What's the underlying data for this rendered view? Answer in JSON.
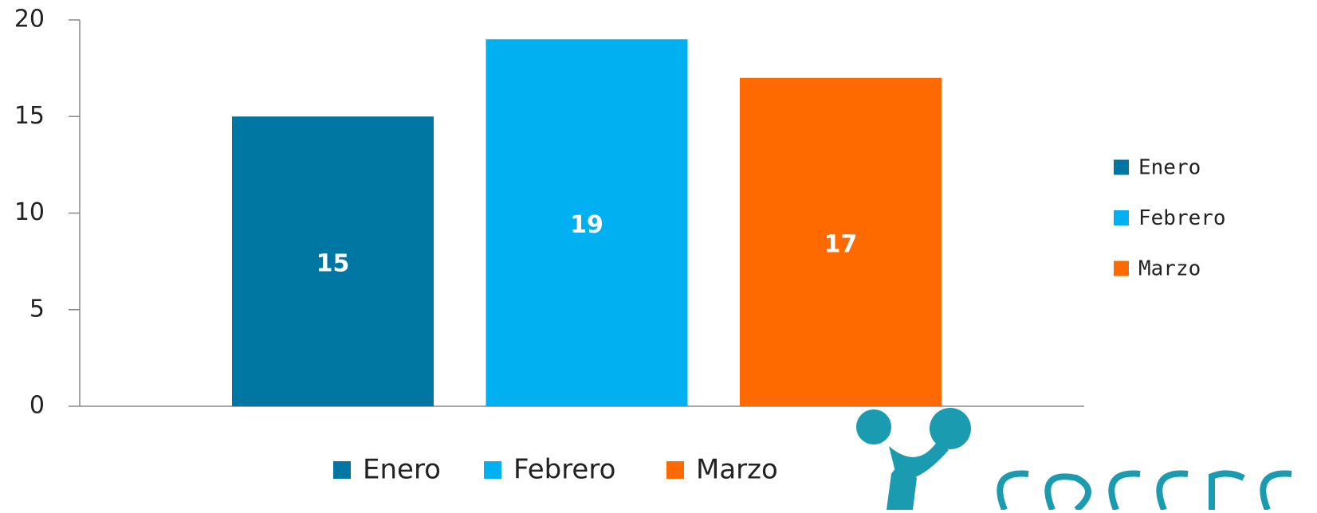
{
  "chart_data": {
    "type": "bar",
    "categories": [
      null
    ],
    "series": [
      {
        "name": "Enero",
        "color": "#0076a3",
        "values": [
          15
        ]
      },
      {
        "name": "Febrero",
        "color": "#00b0f0",
        "values": [
          19
        ]
      },
      {
        "name": "Marzo",
        "color": "#ff6a00",
        "values": [
          17
        ]
      }
    ],
    "ylim": [
      0,
      20
    ],
    "yticks": [
      0,
      5,
      10,
      15,
      20
    ],
    "grid": false,
    "data_labels": true,
    "legend": [
      "right",
      "bottom"
    ]
  }
}
